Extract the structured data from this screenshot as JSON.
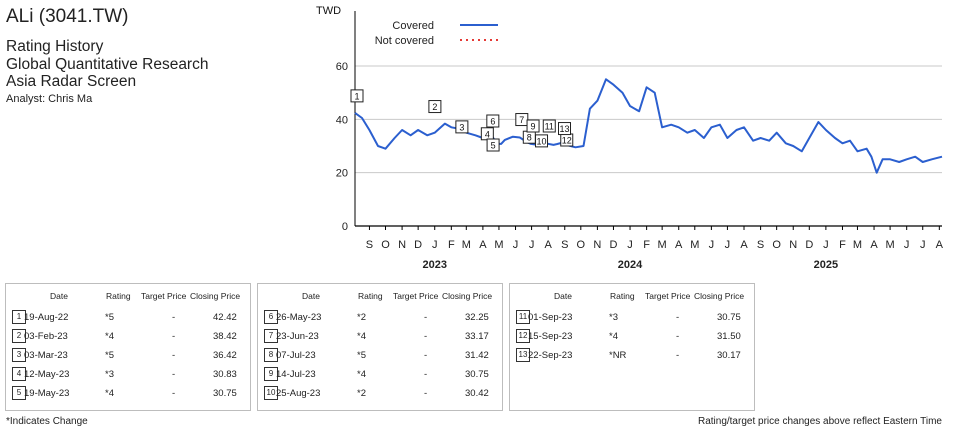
{
  "header": {
    "title": "ALi (3041.TW)",
    "subtitles": [
      "Rating History",
      "Global Quantitative Research",
      "Asia Radar Screen"
    ],
    "analyst": "Analyst: Chris Ma"
  },
  "chart_data": {
    "type": "line",
    "ylabel": "TWD",
    "ylim": [
      0,
      60
    ],
    "yticks": [
      0,
      20,
      40,
      60
    ],
    "grid": true,
    "legend": {
      "position": "top-left",
      "entries": [
        {
          "name": "Covered",
          "style": "solid",
          "color": "#2b5fcf"
        },
        {
          "name": "Not covered",
          "style": "dotted",
          "color": "#e53935"
        }
      ]
    },
    "x_month_ticks": [
      "S",
      "O",
      "N",
      "D",
      "J",
      "F",
      "M",
      "A",
      "M",
      "J",
      "J",
      "A",
      "S",
      "O",
      "N",
      "D",
      "J",
      "F",
      "M",
      "A",
      "M",
      "J",
      "J",
      "A",
      "S",
      "O",
      "N",
      "D",
      "J",
      "F",
      "M",
      "A",
      "M",
      "J",
      "J",
      "A"
    ],
    "year_labels": [
      "2023",
      "2024",
      "2025"
    ],
    "series": [
      {
        "name": "Covered",
        "color": "#2b5fcf",
        "x": [
          "2022-08-19",
          "2022-09-01",
          "2022-09-15",
          "2022-10-01",
          "2022-10-15",
          "2022-11-01",
          "2022-11-15",
          "2022-12-01",
          "2022-12-15",
          "2023-01-01",
          "2023-01-15",
          "2023-02-03",
          "2023-02-15",
          "2023-03-03",
          "2023-03-15",
          "2023-04-01",
          "2023-04-15",
          "2023-05-01",
          "2023-05-12",
          "2023-05-19",
          "2023-05-26",
          "2023-06-10",
          "2023-06-23",
          "2023-07-07",
          "2023-07-14",
          "2023-07-25",
          "2023-08-10",
          "2023-08-25",
          "2023-09-01",
          "2023-09-15",
          "2023-09-22",
          "2023-10-05",
          "2023-10-20",
          "2023-11-01",
          "2023-11-15",
          "2023-12-01",
          "2023-12-15",
          "2024-01-01",
          "2024-01-15",
          "2024-02-01",
          "2024-02-15",
          "2024-03-01",
          "2024-03-15",
          "2024-04-01",
          "2024-04-15",
          "2024-05-01",
          "2024-05-15",
          "2024-06-01",
          "2024-06-15",
          "2024-07-01",
          "2024-07-15",
          "2024-08-01",
          "2024-08-15",
          "2024-09-01",
          "2024-09-15",
          "2024-10-01",
          "2024-10-15",
          "2024-11-01",
          "2024-11-15",
          "2024-12-01",
          "2024-12-15",
          "2025-01-01",
          "2025-01-15",
          "2025-02-01",
          "2025-02-15",
          "2025-03-01",
          "2025-03-15",
          "2025-04-01",
          "2025-04-10",
          "2025-04-20",
          "2025-05-01",
          "2025-05-15",
          "2025-06-01",
          "2025-06-15",
          "2025-07-01",
          "2025-07-15",
          "2025-08-01",
          "2025-08-20"
        ],
        "values": [
          42.4,
          40.5,
          36,
          30,
          29,
          33,
          36,
          34,
          36,
          34,
          35,
          38.4,
          37,
          36.4,
          35,
          34,
          33,
          34,
          30.8,
          30.8,
          32.3,
          33.5,
          33.2,
          31.4,
          30.8,
          30.5,
          31,
          30.4,
          30.75,
          31.5,
          30.17,
          29.5,
          30,
          44,
          47,
          55,
          53,
          50,
          45,
          43,
          52,
          50,
          37,
          38,
          37,
          35,
          36,
          33,
          37,
          38,
          33,
          36,
          37,
          32,
          33,
          32,
          35,
          31,
          30,
          28,
          33,
          39,
          36,
          33,
          31,
          32,
          28,
          29,
          26,
          20,
          25,
          25,
          24,
          25,
          26,
          24,
          25,
          26
        ]
      },
      {
        "name": "Not covered",
        "color": "#e53935",
        "x": [],
        "values": []
      }
    ],
    "markers": [
      {
        "n": "1",
        "x": "2022-08-19",
        "y": 42.42
      },
      {
        "n": "2",
        "x": "2023-02-03",
        "y": 38.42
      },
      {
        "n": "3",
        "x": "2023-03-03",
        "y": 36.42
      },
      {
        "n": "4",
        "x": "2023-05-12",
        "y": 30.83
      },
      {
        "n": "5",
        "x": "2023-05-19",
        "y": 30.75
      },
      {
        "n": "6",
        "x": "2023-05-26",
        "y": 32.25
      },
      {
        "n": "7",
        "x": "2023-06-23",
        "y": 33.17
      },
      {
        "n": "8",
        "x": "2023-07-07",
        "y": 31.42
      },
      {
        "n": "9",
        "x": "2023-07-14",
        "y": 30.75
      },
      {
        "n": "10",
        "x": "2023-08-25",
        "y": 30.42
      },
      {
        "n": "11",
        "x": "2023-09-01",
        "y": 30.75
      },
      {
        "n": "12",
        "x": "2023-09-15",
        "y": 31.5
      },
      {
        "n": "13",
        "x": "2023-09-22",
        "y": 30.17
      }
    ]
  },
  "table": {
    "headers": {
      "date": "Date",
      "rating": "Rating",
      "target": "Target Price",
      "closing": "Closing Price"
    },
    "groups": [
      [
        {
          "n": "1",
          "date": "19-Aug-22",
          "rating": "*5",
          "target": "-",
          "closing": "42.42"
        },
        {
          "n": "2",
          "date": "03-Feb-23",
          "rating": "*4",
          "target": "-",
          "closing": "38.42"
        },
        {
          "n": "3",
          "date": "03-Mar-23",
          "rating": "*5",
          "target": "-",
          "closing": "36.42"
        },
        {
          "n": "4",
          "date": "12-May-23",
          "rating": "*3",
          "target": "-",
          "closing": "30.83"
        },
        {
          "n": "5",
          "date": "19-May-23",
          "rating": "*4",
          "target": "-",
          "closing": "30.75"
        }
      ],
      [
        {
          "n": "6",
          "date": "26-May-23",
          "rating": "*2",
          "target": "-",
          "closing": "32.25"
        },
        {
          "n": "7",
          "date": "23-Jun-23",
          "rating": "*4",
          "target": "-",
          "closing": "33.17"
        },
        {
          "n": "8",
          "date": "07-Jul-23",
          "rating": "*5",
          "target": "-",
          "closing": "31.42"
        },
        {
          "n": "9",
          "date": "14-Jul-23",
          "rating": "*4",
          "target": "-",
          "closing": "30.75"
        },
        {
          "n": "10",
          "date": "25-Aug-23",
          "rating": "*2",
          "target": "-",
          "closing": "30.42"
        }
      ],
      [
        {
          "n": "11",
          "date": "01-Sep-23",
          "rating": "*3",
          "target": "-",
          "closing": "30.75"
        },
        {
          "n": "12",
          "date": "15-Sep-23",
          "rating": "*4",
          "target": "-",
          "closing": "31.50"
        },
        {
          "n": "13",
          "date": "22-Sep-23",
          "rating": "*NR",
          "target": "-",
          "closing": "30.17"
        }
      ]
    ]
  },
  "footer": {
    "left": "*Indicates Change",
    "right": "Rating/target price changes above reflect Eastern Time"
  }
}
